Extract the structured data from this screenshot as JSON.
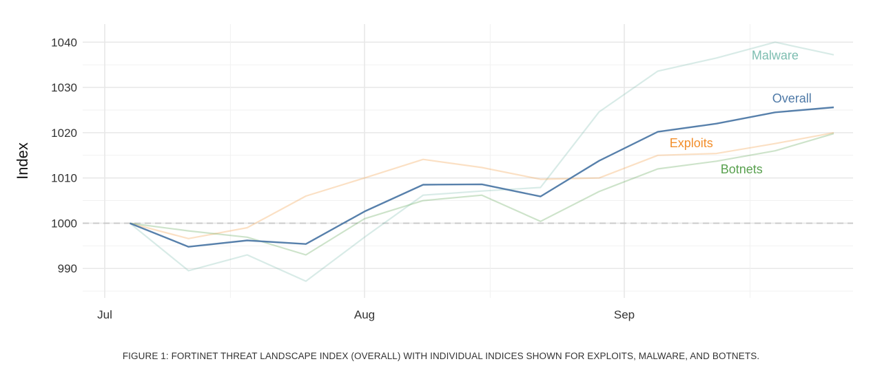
{
  "caption": "FIGURE 1: FORTINET THREAT LANDSCAPE INDEX (OVERALL) WITH INDIVIDUAL INDICES SHOWN FOR EXPLOITS, MALWARE, AND BOTNETS.",
  "chart_data": {
    "type": "line",
    "title": "",
    "xlabel": "",
    "ylabel": "Index",
    "x_ticks": [
      "Jul",
      "Aug",
      "Sep"
    ],
    "x": [
      "2017-07-04",
      "2017-07-11",
      "2017-07-18",
      "2017-07-25",
      "2017-08-01",
      "2017-08-08",
      "2017-08-15",
      "2017-08-22",
      "2017-08-29",
      "2017-09-05",
      "2017-09-12",
      "2017-09-19",
      "2017-09-26"
    ],
    "ylim": [
      983.5,
      1044
    ],
    "y_ticks": [
      990,
      1000,
      1010,
      1020,
      1030,
      1040
    ],
    "reference_line": 1000,
    "grid": true,
    "legend": "direct labels at line ends",
    "series": [
      {
        "name": "Malware",
        "color": "#7dbdb0",
        "opacity": 0.3,
        "values": [
          1000,
          989.5,
          993,
          987.2,
          996.9,
          1006.2,
          1007.1,
          1007.9,
          1024.6,
          1033.6,
          1036.5,
          1040,
          1037.2
        ]
      },
      {
        "name": "Exploits",
        "color": "#f28e2b",
        "opacity": 0.28,
        "values": [
          1000,
          996.6,
          999,
          1006,
          1010,
          1014.1,
          1012.3,
          1009.7,
          1010,
          1015,
          1015.4,
          1017.6,
          1020
        ]
      },
      {
        "name": "Botnets",
        "color": "#59a14f",
        "opacity": 0.3,
        "values": [
          1000,
          998.3,
          996.9,
          993,
          1001,
          1005,
          1006.2,
          1000.4,
          1007,
          1012,
          1013.7,
          1016,
          1019.8
        ]
      },
      {
        "name": "Overall",
        "color": "#4e79a7",
        "opacity": 0.95,
        "values": [
          1000,
          994.8,
          996.2,
          995.4,
          1002.6,
          1008.5,
          1008.6,
          1005.9,
          1013.8,
          1020.2,
          1022,
          1024.5,
          1025.6
        ]
      }
    ],
    "labels": [
      {
        "series": "Malware",
        "text": "Malware",
        "color": "#7dbdb0",
        "x": "2017-09-19",
        "y": 1036.2
      },
      {
        "series": "Overall",
        "text": "Overall",
        "color": "#4e79a7",
        "x": "2017-09-21",
        "y": 1026.7
      },
      {
        "series": "Exploits",
        "text": "Exploits",
        "color": "#f28e2b",
        "x": "2017-09-09",
        "y": 1016.8
      },
      {
        "series": "Botnets",
        "text": "Botnets",
        "color": "#59a14f",
        "x": "2017-09-15",
        "y": 1011
      }
    ]
  }
}
